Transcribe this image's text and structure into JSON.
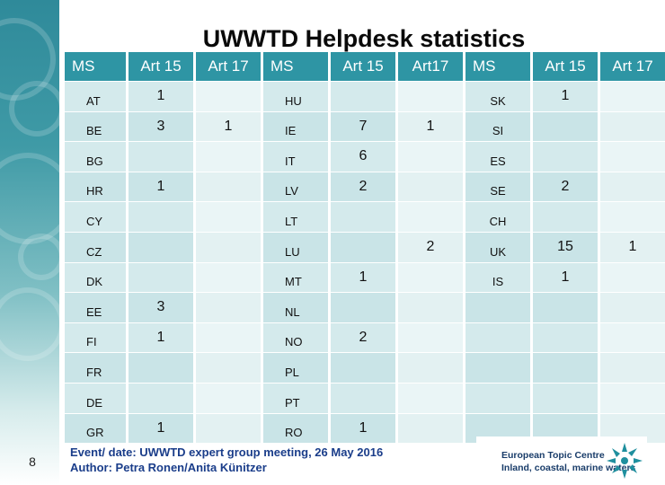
{
  "title": "UWWTD Helpdesk statistics",
  "page_number": "8",
  "headers": [
    "MS",
    "Art 15",
    "Art 17",
    "MS",
    "Art 15",
    "Art17",
    "MS",
    "Art 15",
    "Art 17"
  ],
  "rows": [
    [
      "AT",
      "1",
      "",
      "HU",
      "",
      "",
      "SK",
      "1",
      ""
    ],
    [
      "BE",
      "3",
      "1",
      "IE",
      "7",
      "1",
      "SI",
      "",
      ""
    ],
    [
      "BG",
      "",
      "",
      "IT",
      "6",
      "",
      "ES",
      "",
      ""
    ],
    [
      "HR",
      "1",
      "",
      "LV",
      "2",
      "",
      "SE",
      "2",
      ""
    ],
    [
      "CY",
      "",
      "",
      "LT",
      "",
      "",
      "CH",
      "",
      ""
    ],
    [
      "CZ",
      "",
      "",
      "LU",
      "",
      "2",
      "UK",
      "15",
      "1"
    ],
    [
      "DK",
      "",
      "",
      "MT",
      "1",
      "",
      "IS",
      "1",
      ""
    ],
    [
      "EE",
      "3",
      "",
      "NL",
      "",
      "",
      "",
      "",
      ""
    ],
    [
      "FI",
      "1",
      "",
      "NO",
      "2",
      "",
      "",
      "",
      ""
    ],
    [
      "FR",
      "",
      "",
      "PL",
      "",
      "",
      "",
      "",
      ""
    ],
    [
      "DE",
      "",
      "",
      "PT",
      "",
      "",
      "",
      "",
      ""
    ],
    [
      "GR",
      "1",
      "",
      "RO",
      "1",
      "",
      "",
      "",
      ""
    ]
  ],
  "footer": {
    "line1": "Event/ date: UWWTD expert group meeting, 26 May 2016",
    "line2": "Author: Petra Ronen/Anita Künitzer"
  },
  "logo": {
    "line1": "European Topic Centre",
    "line2": "Inland, coastal, marine waters"
  },
  "colors": {
    "header": "#2e95a4",
    "row_light": "#d4eaec",
    "row_lighter": "#eaf5f6",
    "footer_text": "#1a3d8a"
  }
}
